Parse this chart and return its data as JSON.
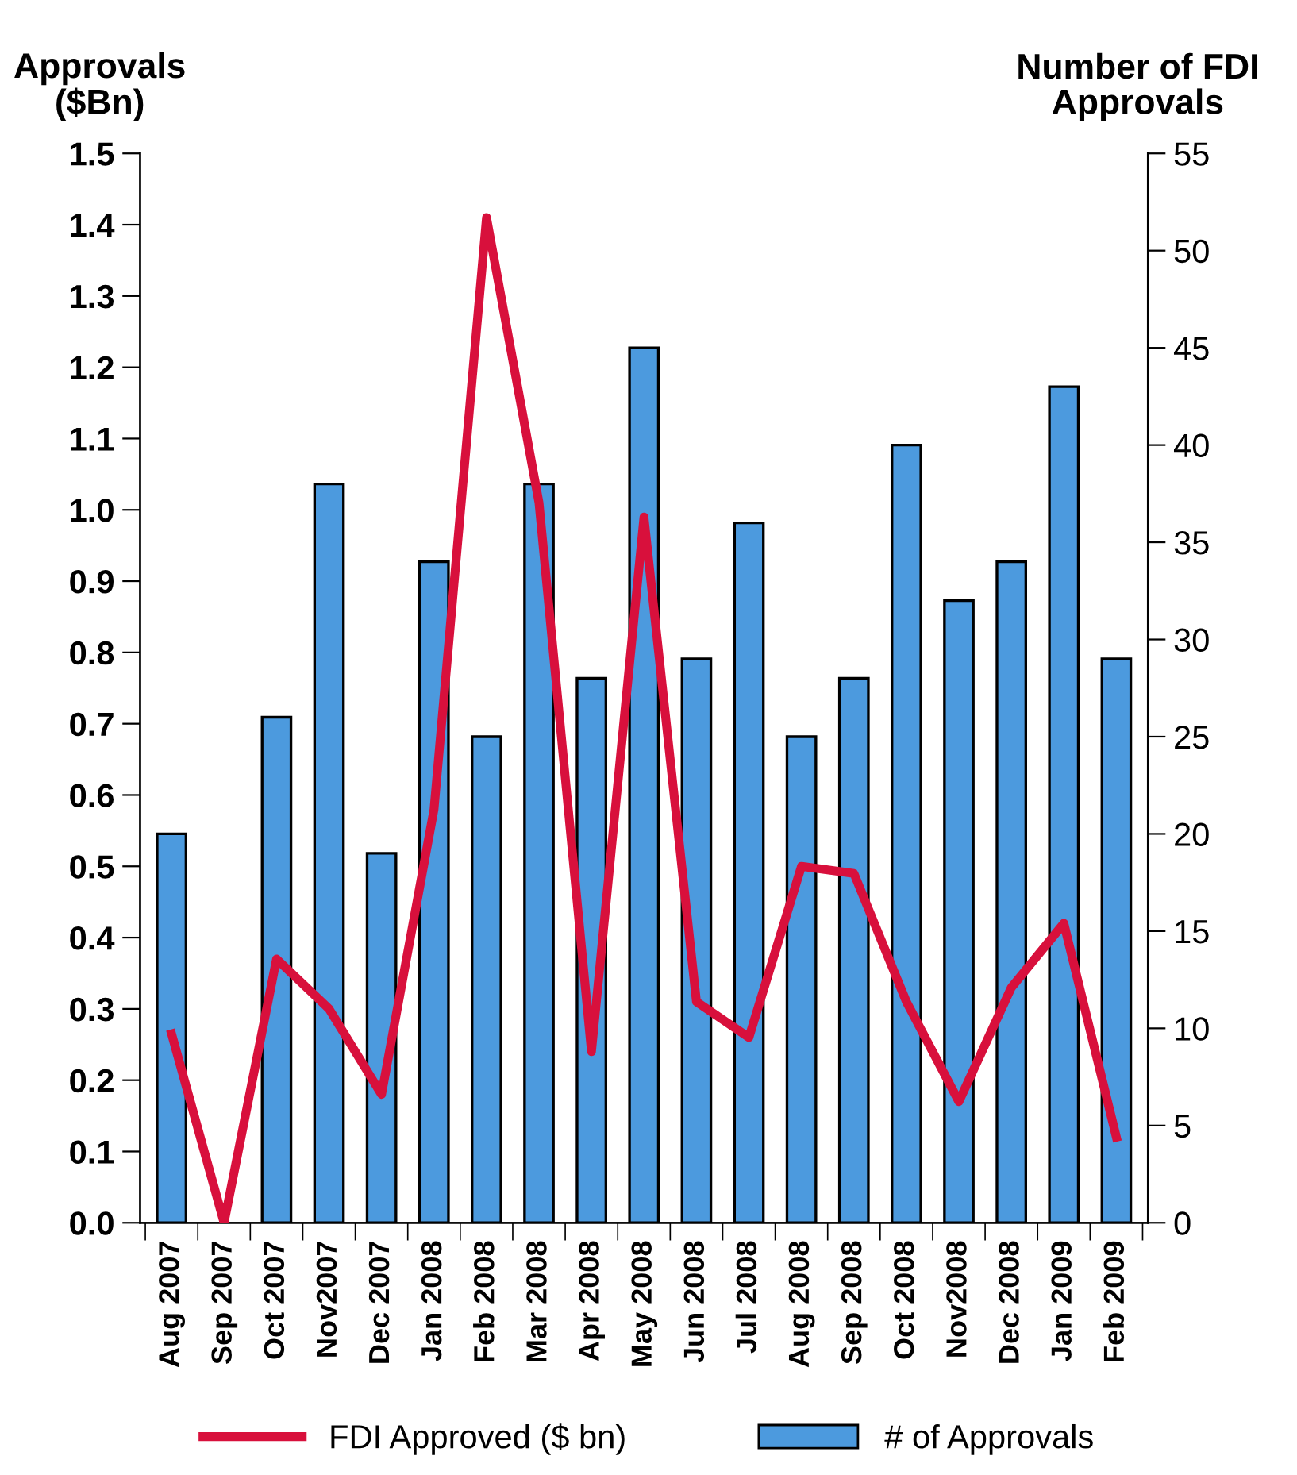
{
  "chart_data": {
    "type": "bar",
    "ylabel": "Approvals\n($Bn)",
    "y2label": "Number of FDI\nApprovals",
    "categories": [
      "Aug 2007",
      "Sep 2007",
      "Oct 2007",
      "Nov2007",
      "Dec 2007",
      "Jan 2008",
      "Feb 2008",
      "Mar 2008",
      "Apr 2008",
      "May 2008",
      "Jun 2008",
      "Jul 2008",
      "Aug 2008",
      "Sep 2008",
      "Oct 2008",
      "Nov2008",
      "Dec 2008",
      "Jan 2009",
      "Feb 2009"
    ],
    "series": [
      {
        "name": "# of Approvals",
        "axis": "y2",
        "color": "#4c9ade",
        "values": [
          20,
          null,
          26,
          38,
          19,
          34,
          25,
          38,
          28,
          45,
          29,
          36,
          25,
          28,
          40,
          32,
          34,
          43,
          29
        ]
      },
      {
        "name": "FDI Approved ($ bn)",
        "type": "line",
        "axis": "y",
        "color": "#d8103c",
        "values": [
          0.265,
          0.0,
          0.37,
          0.3,
          0.18,
          0.58,
          1.41,
          1.01,
          0.24,
          0.99,
          0.31,
          0.26,
          0.5,
          0.49,
          0.31,
          0.17,
          0.33,
          0.42,
          0.12
        ]
      }
    ],
    "ylim": [
      0,
      1.5
    ],
    "yticks": [
      {
        "value": 0,
        "label": "0.0"
      },
      {
        "value": 0.1,
        "label": "0.1"
      },
      {
        "value": 0.2,
        "label": "0.2"
      },
      {
        "value": 0.3,
        "label": "0.3"
      },
      {
        "value": 0.4,
        "label": "0.4"
      },
      {
        "value": 0.5,
        "label": "0.5"
      },
      {
        "value": 0.6,
        "label": "0.6"
      },
      {
        "value": 0.7,
        "label": "0.7"
      },
      {
        "value": 0.8,
        "label": "0.8"
      },
      {
        "value": 0.9,
        "label": "0.9"
      },
      {
        "value": 1.0,
        "label": "1.0"
      },
      {
        "value": 1.1,
        "label": "1.1"
      },
      {
        "value": 1.2,
        "label": "1.2"
      },
      {
        "value": 1.3,
        "label": "1.3"
      },
      {
        "value": 1.4,
        "label": "1.4"
      },
      {
        "value": 1.5,
        "label": "1.5"
      }
    ],
    "y2lim": [
      0,
      55
    ],
    "y2ticks": [
      0,
      5,
      10,
      15,
      20,
      25,
      30,
      35,
      40,
      45,
      50,
      55
    ],
    "legend": "bottom",
    "grid": false,
    "marker": "none",
    "line_style": "solid"
  }
}
